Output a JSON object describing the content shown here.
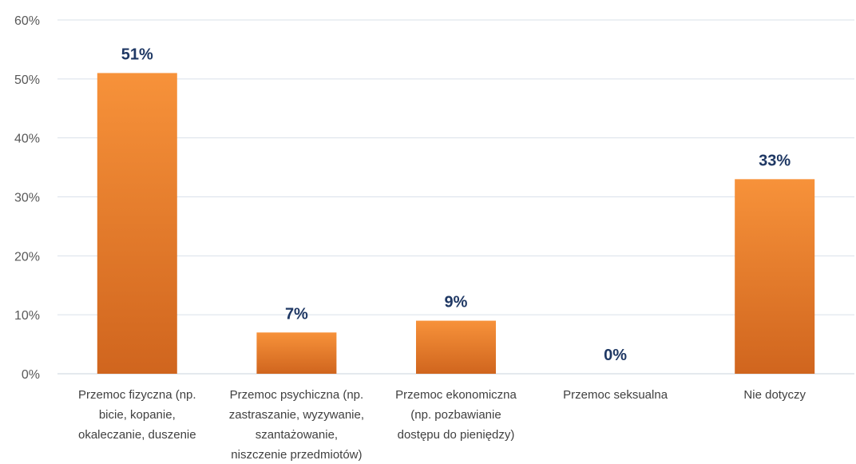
{
  "chart_data": {
    "type": "bar",
    "categories": [
      [
        "Przemoc fizyczna (np.",
        "bicie, kopanie,",
        "okaleczanie, duszenie"
      ],
      [
        "Przemoc psychiczna (np.",
        "zastraszanie, wyzywanie,",
        "szantażowanie,",
        "niszczenie przedmiotów)"
      ],
      [
        "Przemoc ekonomiczna",
        "(np. pozbawianie",
        "dostępu do pieniędzy)"
      ],
      [
        "Przemoc seksualna"
      ],
      [
        "Nie dotyczy"
      ]
    ],
    "values": [
      51,
      7,
      9,
      0,
      33
    ],
    "data_labels": [
      "51%",
      "7%",
      "9%",
      "0%",
      "33%"
    ],
    "y_ticks": [
      "0%",
      "10%",
      "20%",
      "30%",
      "40%",
      "50%",
      "60%"
    ],
    "ylim": [
      0,
      60
    ],
    "grid": true,
    "legend": "none",
    "colors": {
      "bar_top": "#f7923a",
      "bar_bottom": "#d0651e",
      "label": "#1f3864"
    }
  }
}
